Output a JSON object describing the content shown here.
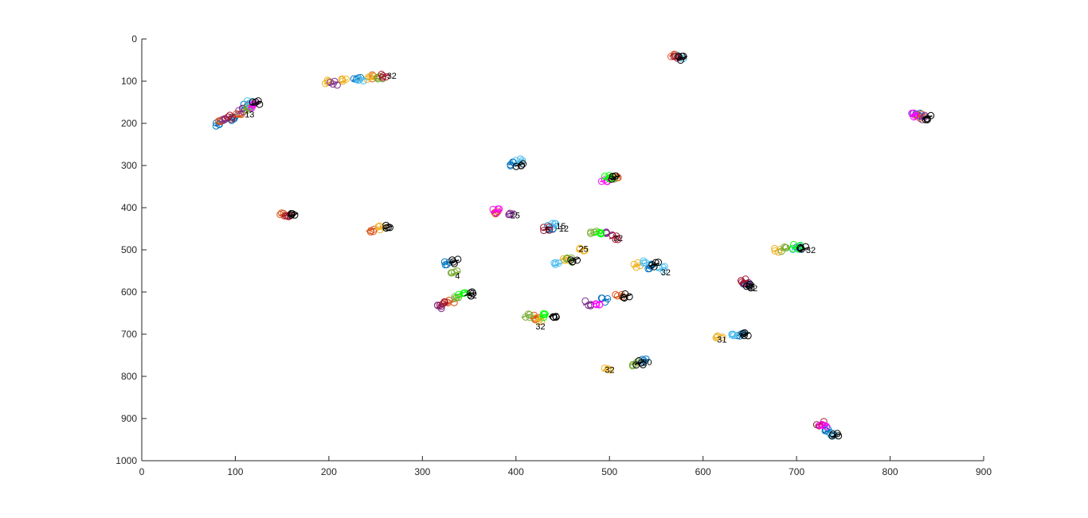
{
  "chart_data": {
    "type": "scatter",
    "title": "",
    "xlabel": "",
    "ylabel": "",
    "xlim": [
      0,
      900
    ],
    "ylim": [
      0,
      1000
    ],
    "y_reversed": true,
    "grid": false,
    "legend": "none",
    "x_ticks": [
      "0",
      "100",
      "200",
      "300",
      "400",
      "500",
      "600",
      "700",
      "800",
      "900"
    ],
    "y_ticks": [
      "0",
      "100",
      "200",
      "300",
      "400",
      "500",
      "600",
      "700",
      "800",
      "900",
      "1000"
    ],
    "colors": [
      "#0072BD",
      "#D95319",
      "#EDB120",
      "#7E2F8E",
      "#77AC30",
      "#4DBEEE",
      "#A2142F",
      "#FF00FF",
      "#00FF00",
      "#00FFFF",
      "#000000"
    ],
    "series": [
      {
        "name": "",
        "color": "#0072BD",
        "points": [
          [
            83,
            202
          ],
          [
            98,
            190
          ],
          [
            112,
            160
          ],
          [
            230,
            95
          ],
          [
            397,
            295
          ],
          [
            545,
            540
          ],
          [
            703,
            497
          ],
          [
            828,
            178
          ],
          [
            537,
            763
          ],
          [
            645,
            578
          ],
          [
            733,
            930
          ],
          [
            328,
            530
          ],
          [
            640,
            700
          ],
          [
            438,
            447
          ],
          [
            495,
            620
          ]
        ]
      },
      {
        "name": "",
        "color": "#D95319",
        "points": [
          [
            86,
            196
          ],
          [
            104,
            183
          ],
          [
            118,
            155
          ],
          [
            250,
            90
          ],
          [
            152,
            415
          ],
          [
            569,
            37
          ],
          [
            245,
            452
          ],
          [
            420,
            660
          ],
          [
            506,
            326
          ],
          [
            832,
            182
          ],
          [
            330,
            625
          ],
          [
            380,
            410
          ],
          [
            510,
            610
          ]
        ]
      },
      {
        "name": "",
        "color": "#EDB120",
        "points": [
          [
            200,
            103
          ],
          [
            215,
            100
          ],
          [
            244,
            93
          ],
          [
            453,
            520
          ],
          [
            680,
            500
          ],
          [
            470,
            500
          ],
          [
            617,
            706
          ],
          [
            498,
            782
          ],
          [
            425,
            665
          ],
          [
            255,
            448
          ],
          [
            530,
            536
          ]
        ]
      },
      {
        "name": "",
        "color": "#7E2F8E",
        "points": [
          [
            89,
            193
          ],
          [
            108,
            170
          ],
          [
            205,
            105
          ],
          [
            477,
            627
          ],
          [
            836,
            186
          ],
          [
            648,
            582
          ],
          [
            320,
            634
          ],
          [
            500,
            462
          ],
          [
            394,
            413
          ]
        ]
      },
      {
        "name": "",
        "color": "#77AC30",
        "points": [
          [
            113,
            165
          ],
          [
            255,
            92
          ],
          [
            335,
            555
          ],
          [
            484,
            458
          ],
          [
            411,
            657
          ],
          [
            502,
            330
          ],
          [
            338,
            612
          ],
          [
            688,
            498
          ],
          [
            527,
            770
          ],
          [
            458,
            525
          ]
        ]
      },
      {
        "name": "",
        "color": "#4DBEEE",
        "points": [
          [
            117,
            152
          ],
          [
            235,
            97
          ],
          [
            403,
            290
          ],
          [
            575,
            42
          ],
          [
            440,
            440
          ],
          [
            555,
            545
          ],
          [
            738,
            937
          ],
          [
            700,
            496
          ],
          [
            633,
            704
          ],
          [
            444,
            535
          ],
          [
            540,
            530
          ]
        ]
      },
      {
        "name": "",
        "color": "#A2142F",
        "points": [
          [
            93,
            185
          ],
          [
            260,
            88
          ],
          [
            155,
            417
          ],
          [
            725,
            913
          ],
          [
            505,
            470
          ],
          [
            433,
            450
          ],
          [
            322,
            628
          ],
          [
            644,
            575
          ],
          [
            572,
            45
          ]
        ]
      },
      {
        "name": "",
        "color": "#FF00FF",
        "points": [
          [
            120,
            158
          ],
          [
            378,
            408
          ],
          [
            826,
            180
          ],
          [
            495,
            335
          ],
          [
            488,
            625
          ],
          [
            729,
            918
          ]
        ]
      },
      {
        "name": "",
        "color": "#00FF00",
        "points": [
          [
            498,
            328
          ],
          [
            488,
            462
          ],
          [
            342,
            603
          ],
          [
            430,
            655
          ],
          [
            700,
            493
          ]
        ]
      },
      {
        "name": "",
        "color": "#000000",
        "points": [
          [
            122,
            152
          ],
          [
            263,
            447
          ],
          [
            162,
            417
          ],
          [
            578,
            45
          ],
          [
            840,
            186
          ],
          [
            404,
            298
          ],
          [
            506,
            328
          ],
          [
            334,
            528
          ],
          [
            650,
            585
          ],
          [
            742,
            940
          ],
          [
            532,
            768
          ],
          [
            645,
            700
          ],
          [
            518,
            610
          ],
          [
            440,
            655
          ],
          [
            548,
            535
          ],
          [
            463,
            523
          ],
          [
            708,
            498
          ],
          [
            350,
            605
          ]
        ]
      }
    ],
    "annotations": [
      {
        "text": "32",
        "x": 262,
        "y": 87
      },
      {
        "text": "13",
        "x": 110,
        "y": 178
      },
      {
        "text": "25",
        "x": 394,
        "y": 418
      },
      {
        "text": "15",
        "x": 443,
        "y": 443
      },
      {
        "text": "12",
        "x": 446,
        "y": 449
      },
      {
        "text": "5",
        "x": 431,
        "y": 452
      },
      {
        "text": "25",
        "x": 467,
        "y": 497
      },
      {
        "text": "32",
        "x": 504,
        "y": 472
      },
      {
        "text": "32",
        "x": 555,
        "y": 553
      },
      {
        "text": "4",
        "x": 335,
        "y": 561
      },
      {
        "text": "32",
        "x": 348,
        "y": 608
      },
      {
        "text": "32",
        "x": 421,
        "y": 681
      },
      {
        "text": "32",
        "x": 648,
        "y": 591
      },
      {
        "text": "31",
        "x": 615,
        "y": 712
      },
      {
        "text": "32",
        "x": 495,
        "y": 784
      },
      {
        "text": "30",
        "x": 535,
        "y": 766
      },
      {
        "text": "32",
        "x": 710,
        "y": 500
      }
    ]
  }
}
